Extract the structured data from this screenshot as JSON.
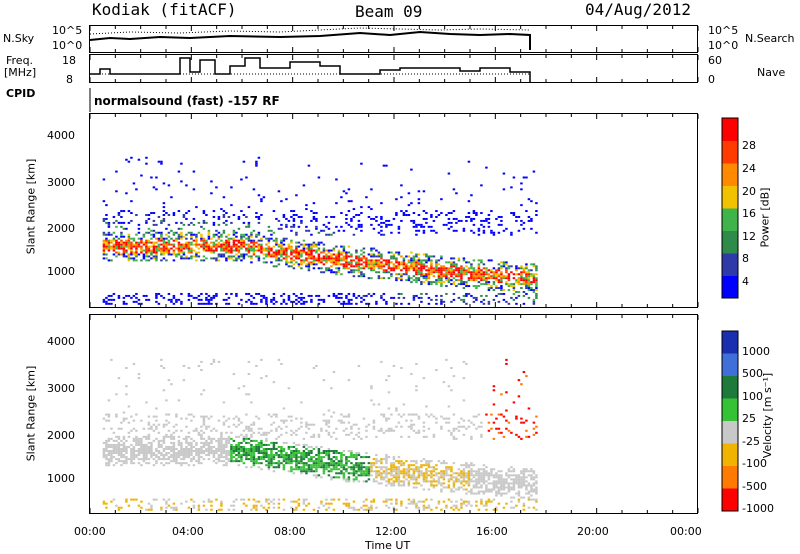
{
  "header": {
    "station": "Kodiak (fitACF)",
    "beam": "Beam 09",
    "date": "04/Aug/2012"
  },
  "left_labels": {
    "nsky": "N.Sky",
    "freq_line1": "Freq.",
    "freq_line2": "[MHz]",
    "cpid": "CPID"
  },
  "right_labels": {
    "nsearch": "N.Search",
    "nave": "Nave"
  },
  "cpid_text": "normalsound (fast) -157 RF",
  "colors": {
    "power_scale": [
      "#0000ff",
      "#2e3aa8",
      "#2f8b4a",
      "#3fb44a",
      "#f2c200",
      "#ff8a00",
      "#ff3b00",
      "#ff0000"
    ],
    "velocity_scale": [
      "#1a2fb0",
      "#3f6fd8",
      "#1e7a3a",
      "#35c335",
      "#c8c8c8",
      "#f0b400",
      "#ff7a00",
      "#ff0000"
    ]
  },
  "chart_data": [
    {
      "type": "line",
      "name": "noise",
      "ylabel_left": "N.Sky",
      "ylabel_right": "N.Search",
      "yticks_left": [
        "10^5",
        "10^0"
      ],
      "yticks_right": [
        "10^5",
        "10^0"
      ],
      "x_range_hours": [
        0,
        24
      ],
      "data_end_hour": 17.6
    },
    {
      "type": "line",
      "name": "frequency-nave",
      "ylabel_left": "Freq. [MHz]",
      "ylabel_right": "Nave",
      "yticks_left": [
        "18",
        "8"
      ],
      "yticks_right": [
        "60",
        "0"
      ],
      "x_range_hours": [
        0,
        24
      ],
      "data_end_hour": 17.6
    },
    {
      "type": "heatmap",
      "name": "power",
      "ylabel": "Slant Range [km]",
      "yticks": [
        "4000",
        "3000",
        "2000",
        "1000"
      ],
      "ylim": [
        200,
        4600
      ],
      "x_range_hours": [
        0,
        24
      ],
      "colorbar_label": "Power [dB]",
      "colorbar_ticks": [
        "28",
        "24",
        "20",
        "16",
        "12",
        "8",
        "4"
      ]
    },
    {
      "type": "heatmap",
      "name": "velocity",
      "ylabel": "Slant Range [km]",
      "yticks": [
        "4000",
        "3000",
        "2000",
        "1000"
      ],
      "ylim": [
        200,
        4600
      ],
      "x_range_hours": [
        0,
        24
      ],
      "colorbar_label": "Velocity [m s⁻¹]",
      "colorbar_ticks": [
        "1000",
        "500",
        "100",
        "25",
        "-25",
        "-100",
        "-500",
        "-1000"
      ]
    }
  ],
  "x_axis": {
    "ticks": [
      "00:00",
      "04:00",
      "08:00",
      "12:00",
      "16:00",
      "20:00",
      "00:00"
    ],
    "label": "Time UT"
  }
}
